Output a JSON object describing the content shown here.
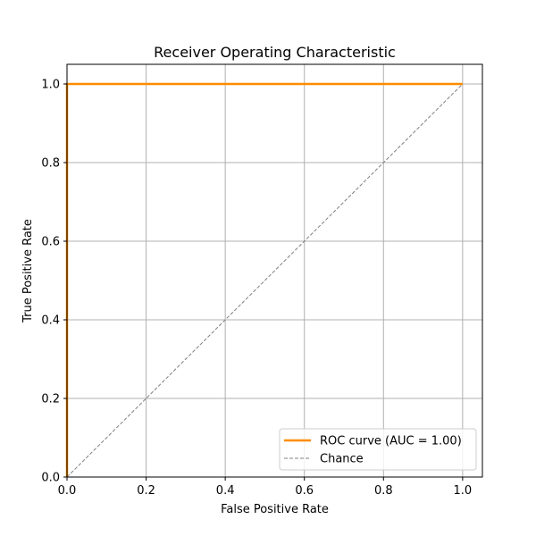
{
  "chart_data": {
    "type": "line",
    "title": "Receiver Operating Characteristic",
    "xlabel": "False Positive Rate",
    "ylabel": "True Positive Rate",
    "xlim": [
      0.0,
      1.05
    ],
    "ylim": [
      0.0,
      1.05
    ],
    "xticks": [
      0.0,
      0.2,
      0.4,
      0.6,
      0.8,
      1.0
    ],
    "yticks": [
      0.0,
      0.2,
      0.4,
      0.6,
      0.8,
      1.0
    ],
    "xtick_labels": [
      "0.0",
      "0.2",
      "0.4",
      "0.6",
      "0.8",
      "1.0"
    ],
    "ytick_labels": [
      "0.0",
      "0.2",
      "0.4",
      "0.6",
      "0.8",
      "1.0"
    ],
    "grid": true,
    "legend_position": "lower-right",
    "series": [
      {
        "name": "ROC curve (AUC = 1.00)",
        "x": [
          0.0,
          0.0,
          1.0
        ],
        "y": [
          0.0,
          1.0,
          1.0
        ],
        "color": "#ff8c00",
        "line_style": "solid"
      },
      {
        "name": "Chance",
        "x": [
          0.0,
          1.0
        ],
        "y": [
          0.0,
          1.0
        ],
        "color": "#808080",
        "line_style": "dashed"
      }
    ]
  }
}
